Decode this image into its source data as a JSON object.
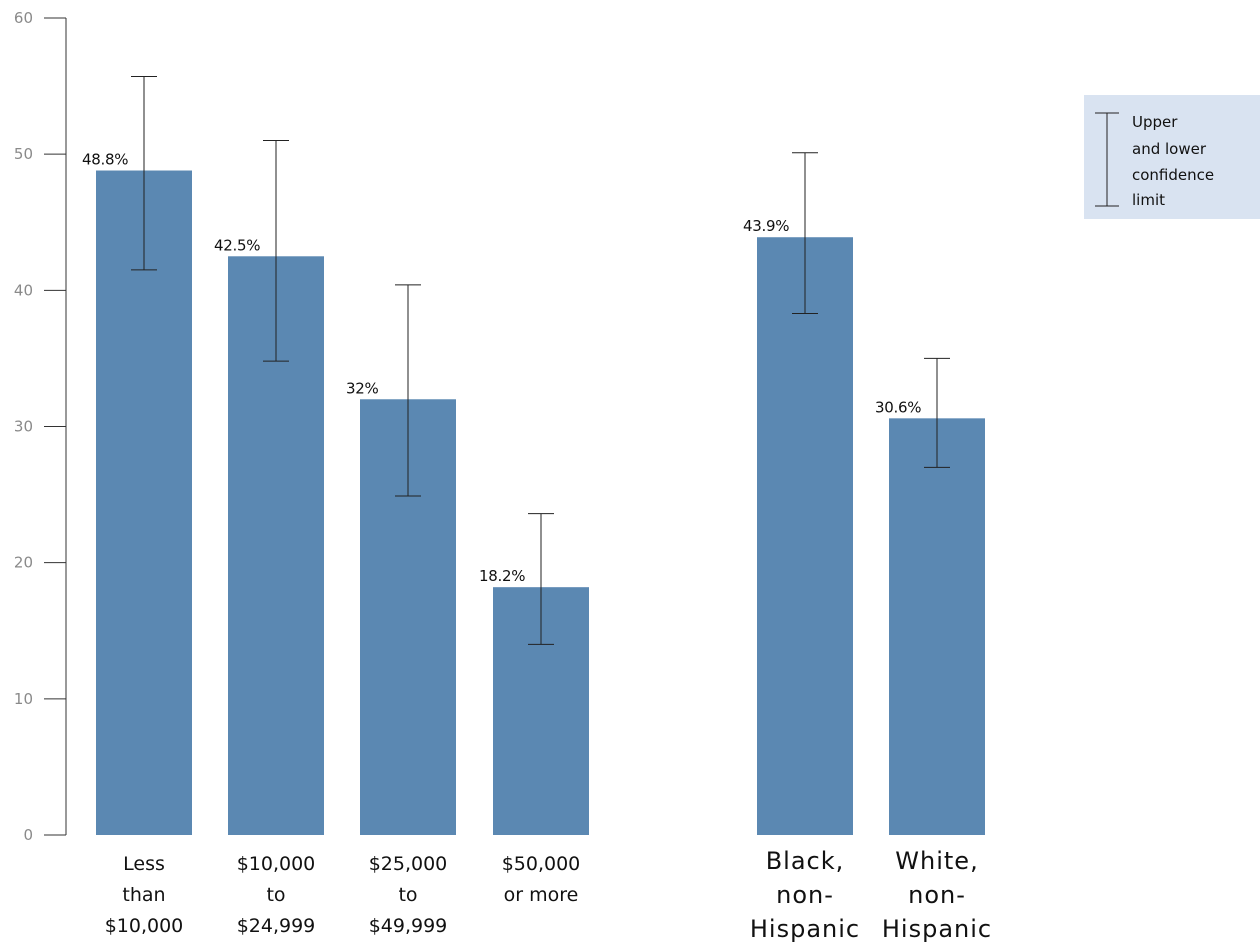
{
  "chart_data": {
    "type": "bar",
    "categories": [
      "Less than $10,000",
      "$10,000 to $24,999",
      "$25,000 to $49,999",
      "$50,000 or more",
      "Black, non-Hispanic",
      "White, non-Hispanic"
    ],
    "category_lines": [
      [
        "Less",
        "than",
        "$10,000"
      ],
      [
        "$10,000",
        "to",
        "$24,999"
      ],
      [
        "$25,000",
        "to",
        "$49,999"
      ],
      [
        "$50,000",
        "or more"
      ],
      [
        "Black,",
        "non-",
        "Hispanic"
      ],
      [
        "White,",
        "non-",
        "Hispanic"
      ]
    ],
    "values": [
      48.8,
      42.5,
      32,
      18.2,
      43.9,
      30.6
    ],
    "value_labels": [
      "48.8%",
      "42.5%",
      "32%",
      "18.2%",
      "43.9%",
      "30.6%"
    ],
    "ci_lower": [
      41.5,
      34.8,
      24.9,
      14,
      38.3,
      27
    ],
    "ci_upper": [
      55.7,
      51,
      40.4,
      23.6,
      50.1,
      35
    ],
    "ylim": [
      0,
      60
    ],
    "yticks": [
      0,
      10,
      20,
      30,
      40,
      50,
      60
    ],
    "bar_color": "#5b88b2",
    "grid": false,
    "title": "",
    "xlabel": "",
    "ylabel": "",
    "legend": {
      "position": "top-right",
      "lines": [
        "Upper",
        "and lower",
        "confidence",
        "limit"
      ],
      "background": "#d9e3f1"
    }
  }
}
